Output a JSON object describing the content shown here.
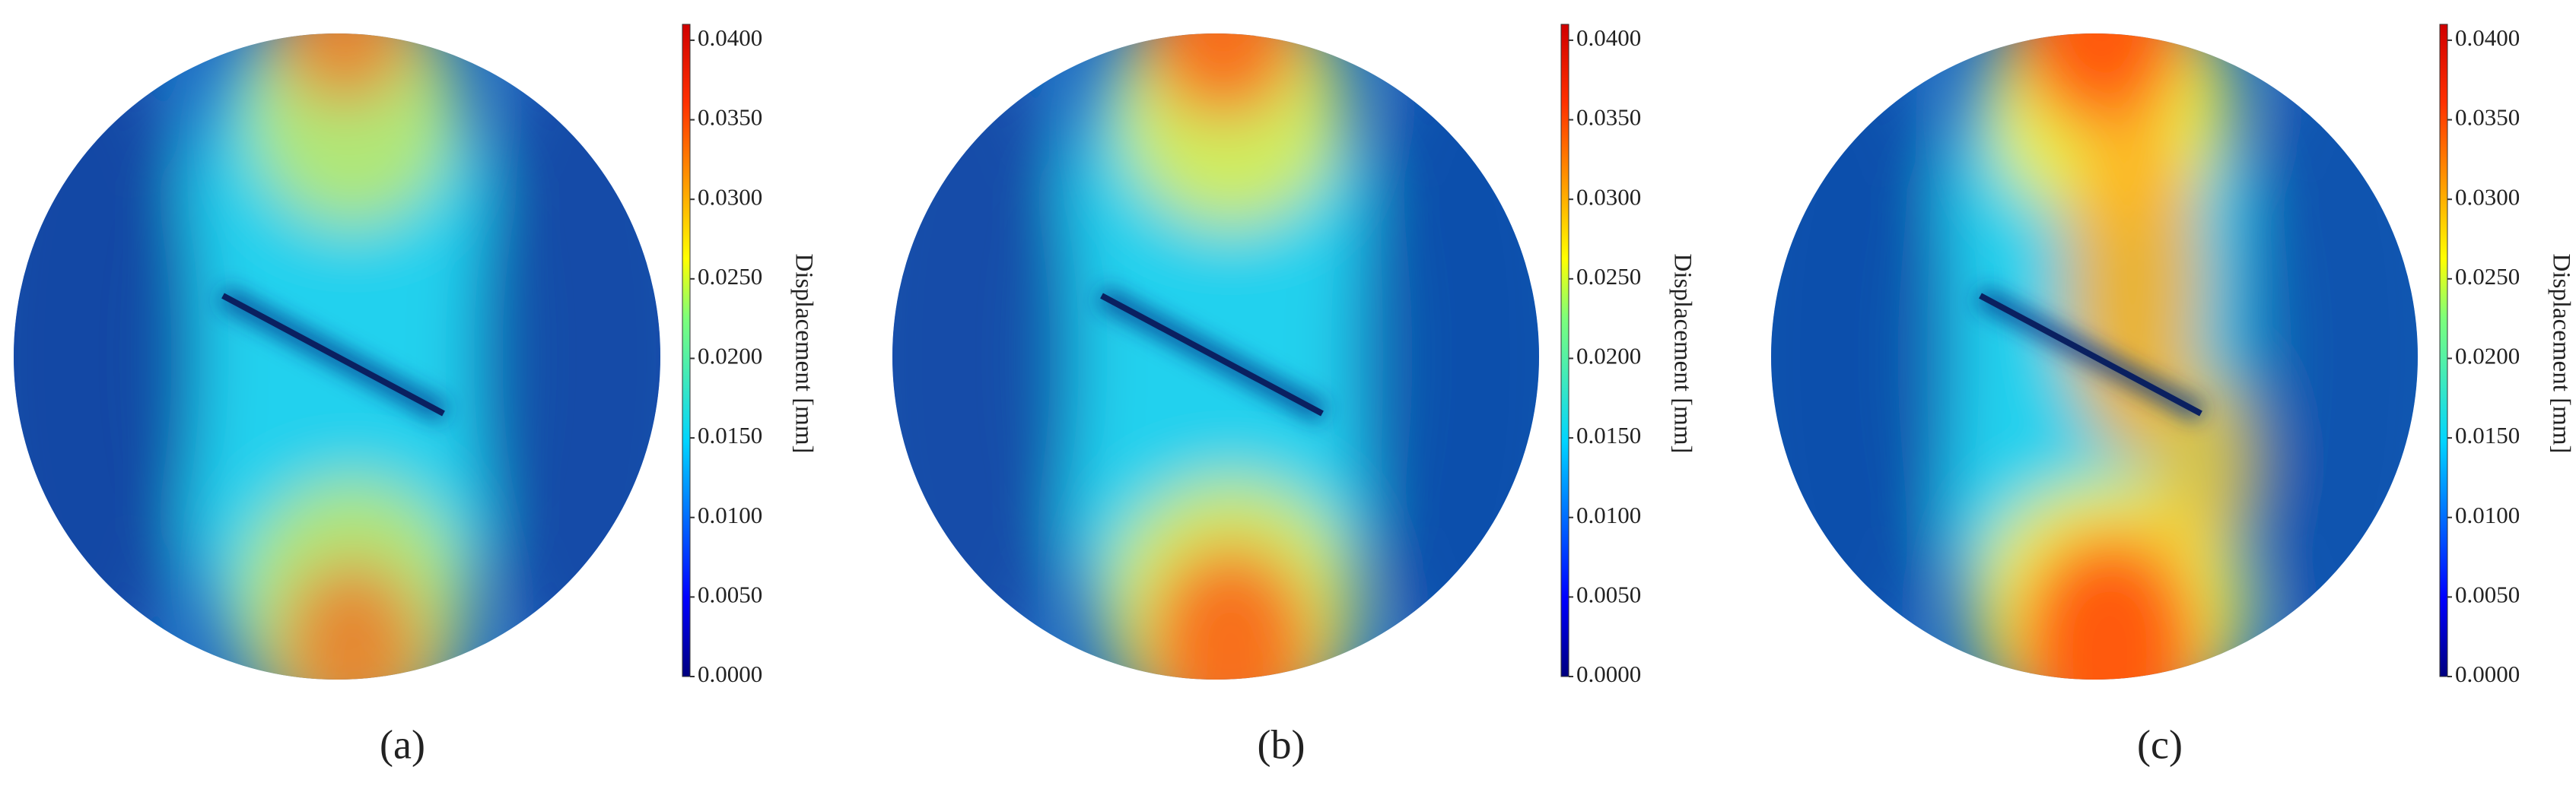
{
  "colorbar": {
    "title": "Displacement [mm]",
    "limits": [
      0,
      0.041
    ],
    "ticks": [
      {
        "value": 0,
        "label": "0.0000"
      },
      {
        "value": 0.005,
        "label": "0.0050"
      },
      {
        "value": 0.01,
        "label": "0.0100"
      },
      {
        "value": 0.015,
        "label": "0.0150"
      },
      {
        "value": 0.02,
        "label": "0.0200"
      },
      {
        "value": 0.025,
        "label": "0.0250"
      },
      {
        "value": 0.03,
        "label": "0.0300"
      },
      {
        "value": 0.035,
        "label": "0.0350"
      },
      {
        "value": 0.04,
        "label": "0.0400"
      }
    ]
  },
  "panels": [
    {
      "label": "(a)"
    },
    {
      "label": "(b)"
    },
    {
      "label": "(c)"
    }
  ]
}
